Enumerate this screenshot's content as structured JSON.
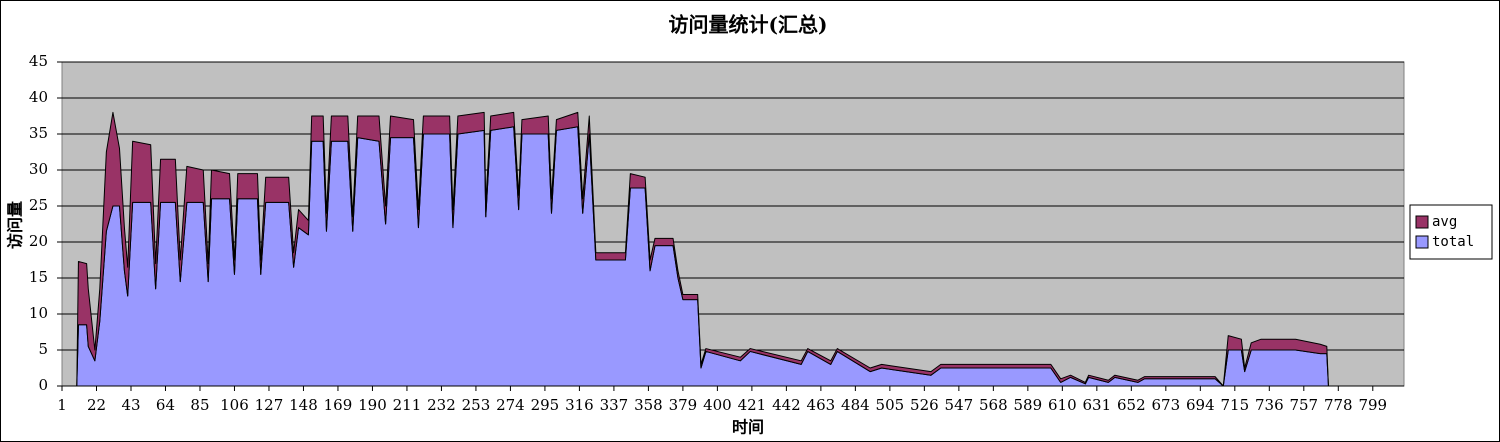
{
  "chart_data": {
    "type": "stacked-area",
    "title": "访问量统计(汇总)",
    "x_label": "时间",
    "y_label": "访问量",
    "x": [
      10,
      11,
      16,
      17,
      21,
      24,
      28,
      32,
      36,
      39,
      41,
      44,
      55,
      58,
      61,
      70,
      73,
      77,
      87,
      90,
      92,
      103,
      106,
      108,
      120,
      122,
      125,
      139,
      142,
      145,
      151,
      153,
      160,
      162,
      165,
      175,
      178,
      181,
      194,
      198,
      201,
      215,
      218,
      221,
      237,
      239,
      242,
      258,
      259,
      262,
      276,
      279,
      281,
      297,
      299,
      302,
      315,
      318,
      322,
      326,
      344,
      347,
      356,
      359,
      362,
      373,
      376,
      379,
      388,
      390,
      393,
      414,
      420,
      451,
      455,
      469,
      473,
      493,
      500,
      530,
      536,
      603,
      609,
      615,
      624,
      626,
      638,
      642,
      656,
      660,
      703,
      708,
      711,
      719,
      721,
      725,
      731,
      752,
      767,
      771,
      772
    ],
    "series": [
      {
        "name": "total",
        "color": "#9999ff",
        "values": [
          0,
          8.5,
          8.5,
          5.5,
          3.5,
          9,
          21.5,
          25,
          25,
          16,
          12.5,
          25.5,
          25.5,
          13.5,
          25.5,
          25.5,
          14.5,
          25.5,
          25.5,
          14.5,
          26,
          26,
          15.5,
          26,
          26,
          15.5,
          25.5,
          25.5,
          16.5,
          22,
          21,
          34,
          34,
          21.5,
          34,
          34,
          21.5,
          34.5,
          34,
          22.5,
          34.5,
          34.5,
          22,
          35,
          35,
          22,
          35,
          35.5,
          23.5,
          35.5,
          36,
          24.5,
          35,
          35,
          24,
          35.5,
          36,
          24,
          35,
          17.5,
          17.5,
          27.5,
          27.5,
          16,
          19.5,
          19.5,
          15,
          12,
          12,
          2.5,
          4.8,
          3.5,
          4.8,
          3,
          4.8,
          3,
          4.8,
          2,
          2.5,
          1.5,
          2.5,
          2.5,
          0.5,
          1.2,
          0.3,
          1.2,
          0.5,
          1.2,
          0.5,
          1,
          1,
          0,
          5,
          5,
          2,
          5,
          5,
          5,
          4.5,
          4.5,
          0
        ]
      },
      {
        "name": "avg",
        "color": "#993366",
        "values": [
          0,
          8.8,
          8.5,
          8,
          1.5,
          4.5,
          11,
          13,
          8,
          6,
          4,
          8.5,
          8,
          3.5,
          6,
          6,
          3,
          5,
          4.5,
          2.5,
          4,
          3.5,
          2,
          3.5,
          3.5,
          2,
          3.5,
          3.5,
          2,
          2.5,
          2,
          3.5,
          3.5,
          2.5,
          3.5,
          3.5,
          2,
          3,
          3.5,
          2.5,
          3,
          2.5,
          2.5,
          2.5,
          2.5,
          2.5,
          2.5,
          2.5,
          2,
          2,
          2,
          2,
          2,
          2.5,
          2,
          1.5,
          2,
          2,
          2.5,
          1,
          1,
          2,
          1.5,
          1.5,
          1,
          1,
          1,
          0.7,
          0.7,
          0.5,
          0.4,
          0.5,
          0.4,
          0.5,
          0.4,
          0.5,
          0.4,
          0.5,
          0.5,
          0.5,
          0.5,
          0.5,
          0.5,
          0.3,
          0.2,
          0.3,
          0.3,
          0.3,
          0.3,
          0.3,
          0.3,
          0,
          2,
          1.5,
          0.5,
          1,
          1.5,
          1.5,
          1.3,
          1,
          0
        ]
      }
    ],
    "xlim": [
      1,
      818
    ],
    "xticks": [
      1,
      22,
      43,
      64,
      85,
      106,
      127,
      148,
      169,
      190,
      211,
      232,
      253,
      274,
      295,
      316,
      337,
      358,
      379,
      400,
      421,
      442,
      463,
      484,
      505,
      526,
      547,
      568,
      589,
      610,
      631,
      652,
      673,
      694,
      715,
      736,
      757,
      778,
      799
    ],
    "ylim": [
      0,
      45
    ],
    "yticks": [
      0,
      5,
      10,
      15,
      20,
      25,
      30,
      35,
      40,
      45
    ],
    "grid": true,
    "legend": "right",
    "plot_background": "#c0c0c0"
  }
}
